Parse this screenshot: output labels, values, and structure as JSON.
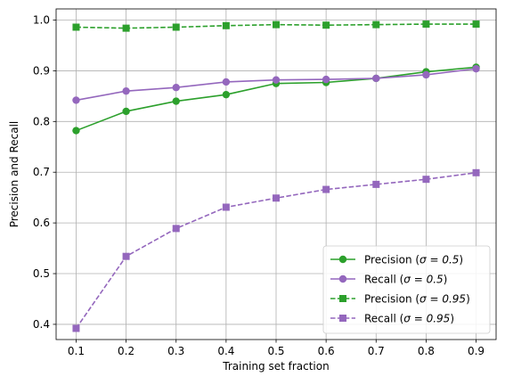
{
  "chart_data": {
    "type": "line",
    "title": "",
    "xlabel": "Training set fraction",
    "ylabel": "Precision and Recall",
    "xlim": [
      0.06,
      0.94
    ],
    "ylim": [
      0.37,
      1.022
    ],
    "x": [
      0.1,
      0.2,
      0.3,
      0.4,
      0.5,
      0.6,
      0.7,
      0.8,
      0.9
    ],
    "x_ticks": [
      0.1,
      0.2,
      0.3,
      0.4,
      0.5,
      0.6,
      0.7,
      0.8,
      0.9
    ],
    "x_tick_labels": [
      "0.1",
      "0.2",
      "0.3",
      "0.4",
      "0.5",
      "0.6",
      "0.7",
      "0.8",
      "0.9"
    ],
    "y_ticks": [
      0.4,
      0.5,
      0.6,
      0.7,
      0.8,
      0.9,
      1.0
    ],
    "y_tick_labels": [
      "0.4",
      "0.5",
      "0.6",
      "0.7",
      "0.8",
      "0.9",
      "1.0"
    ],
    "grid": true,
    "legend_position": "lower-right",
    "series": [
      {
        "name": "Precision (σ = 0.5)",
        "legend_prefix": "Precision (",
        "legend_math": "σ = 0.5",
        "legend_suffix": ")",
        "color": "#2ca02c",
        "linestyle": "solid",
        "marker": "circle",
        "values": [
          0.782,
          0.82,
          0.84,
          0.853,
          0.875,
          0.877,
          0.885,
          0.898,
          0.907
        ]
      },
      {
        "name": "Recall (σ = 0.5)",
        "legend_prefix": "Recall (",
        "legend_math": "σ = 0.5",
        "legend_suffix": ")",
        "color": "#9467bd",
        "linestyle": "solid",
        "marker": "circle",
        "values": [
          0.842,
          0.86,
          0.867,
          0.878,
          0.882,
          0.883,
          0.885,
          0.892,
          0.904
        ]
      },
      {
        "name": "Precision (σ = 0.95)",
        "legend_prefix": "Precision (",
        "legend_math": "σ = 0.95",
        "legend_suffix": ")",
        "color": "#2ca02c",
        "linestyle": "dashed",
        "marker": "square",
        "values": [
          0.986,
          0.984,
          0.986,
          0.989,
          0.991,
          0.99,
          0.991,
          0.992,
          0.992
        ]
      },
      {
        "name": "Recall (σ = 0.95)",
        "legend_prefix": "Recall (",
        "legend_math": "σ = 0.95",
        "legend_suffix": ")",
        "color": "#9467bd",
        "linestyle": "dashed",
        "marker": "square",
        "values": [
          0.392,
          0.534,
          0.589,
          0.631,
          0.649,
          0.666,
          0.676,
          0.686,
          0.699
        ]
      }
    ]
  }
}
